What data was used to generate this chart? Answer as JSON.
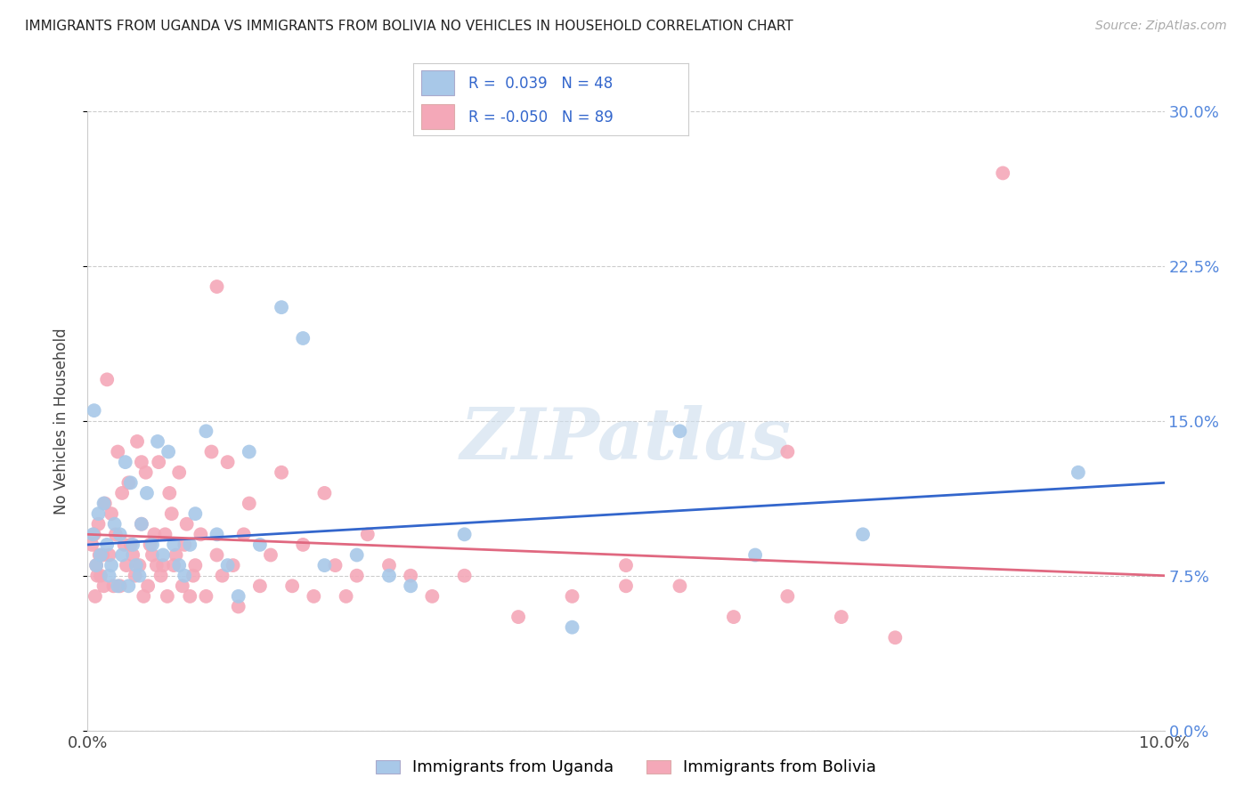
{
  "title": "IMMIGRANTS FROM UGANDA VS IMMIGRANTS FROM BOLIVIA NO VEHICLES IN HOUSEHOLD CORRELATION CHART",
  "source": "Source: ZipAtlas.com",
  "ylabel": "No Vehicles in Household",
  "ytick_values": [
    0.0,
    7.5,
    15.0,
    22.5,
    30.0
  ],
  "xlim": [
    0.0,
    10.0
  ],
  "ylim": [
    0.0,
    30.0
  ],
  "legend_r_uganda": " 0.039",
  "legend_n_uganda": "48",
  "legend_r_bolivia": "-0.050",
  "legend_n_bolivia": "89",
  "color_uganda": "#a8c8e8",
  "color_bolivia": "#f4a8b8",
  "line_color_uganda": "#3366cc",
  "line_color_bolivia": "#e06880",
  "watermark": "ZIPatlas",
  "uganda_x": [
    0.05,
    0.08,
    0.1,
    0.12,
    0.15,
    0.18,
    0.2,
    0.22,
    0.25,
    0.28,
    0.3,
    0.32,
    0.35,
    0.38,
    0.4,
    0.42,
    0.45,
    0.48,
    0.5,
    0.55,
    0.6,
    0.65,
    0.7,
    0.75,
    0.8,
    0.85,
    0.9,
    0.95,
    1.0,
    1.1,
    1.2,
    1.3,
    1.4,
    1.5,
    1.6,
    1.8,
    2.0,
    2.2,
    2.5,
    2.8,
    3.0,
    3.5,
    4.5,
    5.5,
    6.2,
    7.2,
    9.2,
    0.06
  ],
  "uganda_y": [
    9.5,
    8.0,
    10.5,
    8.5,
    11.0,
    9.0,
    7.5,
    8.0,
    10.0,
    7.0,
    9.5,
    8.5,
    13.0,
    7.0,
    12.0,
    9.0,
    8.0,
    7.5,
    10.0,
    11.5,
    9.0,
    14.0,
    8.5,
    13.5,
    9.0,
    8.0,
    7.5,
    9.0,
    10.5,
    14.5,
    9.5,
    8.0,
    6.5,
    13.5,
    9.0,
    20.5,
    19.0,
    8.0,
    8.5,
    7.5,
    7.0,
    9.5,
    5.0,
    14.5,
    8.5,
    9.5,
    12.5,
    15.5
  ],
  "bolivia_x": [
    0.04,
    0.06,
    0.08,
    0.1,
    0.12,
    0.14,
    0.16,
    0.18,
    0.2,
    0.22,
    0.24,
    0.26,
    0.28,
    0.3,
    0.32,
    0.34,
    0.36,
    0.38,
    0.4,
    0.42,
    0.44,
    0.46,
    0.48,
    0.5,
    0.52,
    0.54,
    0.56,
    0.58,
    0.6,
    0.62,
    0.64,
    0.66,
    0.68,
    0.7,
    0.72,
    0.74,
    0.76,
    0.78,
    0.8,
    0.82,
    0.85,
    0.88,
    0.9,
    0.92,
    0.95,
    0.98,
    1.0,
    1.05,
    1.1,
    1.15,
    1.2,
    1.25,
    1.3,
    1.35,
    1.4,
    1.45,
    1.5,
    1.6,
    1.7,
    1.8,
    1.9,
    2.0,
    2.1,
    2.2,
    2.3,
    2.4,
    2.5,
    2.6,
    2.8,
    3.0,
    3.2,
    3.5,
    4.0,
    4.5,
    5.0,
    5.5,
    6.0,
    6.5,
    7.0,
    7.5,
    0.07,
    0.09,
    0.11,
    0.15,
    1.2,
    5.0,
    8.5,
    6.5,
    0.5
  ],
  "bolivia_y": [
    9.0,
    9.5,
    8.0,
    10.0,
    7.5,
    8.5,
    11.0,
    17.0,
    8.5,
    10.5,
    7.0,
    9.5,
    13.5,
    7.0,
    11.5,
    9.0,
    8.0,
    12.0,
    9.0,
    8.5,
    7.5,
    14.0,
    8.0,
    10.0,
    6.5,
    12.5,
    7.0,
    9.0,
    8.5,
    9.5,
    8.0,
    13.0,
    7.5,
    8.0,
    9.5,
    6.5,
    11.5,
    10.5,
    8.0,
    8.5,
    12.5,
    7.0,
    9.0,
    10.0,
    6.5,
    7.5,
    8.0,
    9.5,
    6.5,
    13.5,
    8.5,
    7.5,
    13.0,
    8.0,
    6.0,
    9.5,
    11.0,
    7.0,
    8.5,
    12.5,
    7.0,
    9.0,
    6.5,
    11.5,
    8.0,
    6.5,
    7.5,
    9.5,
    8.0,
    7.5,
    6.5,
    7.5,
    5.5,
    6.5,
    8.0,
    7.0,
    5.5,
    6.5,
    5.5,
    4.5,
    6.5,
    7.5,
    8.5,
    7.0,
    21.5,
    7.0,
    27.0,
    13.5,
    13.0
  ]
}
